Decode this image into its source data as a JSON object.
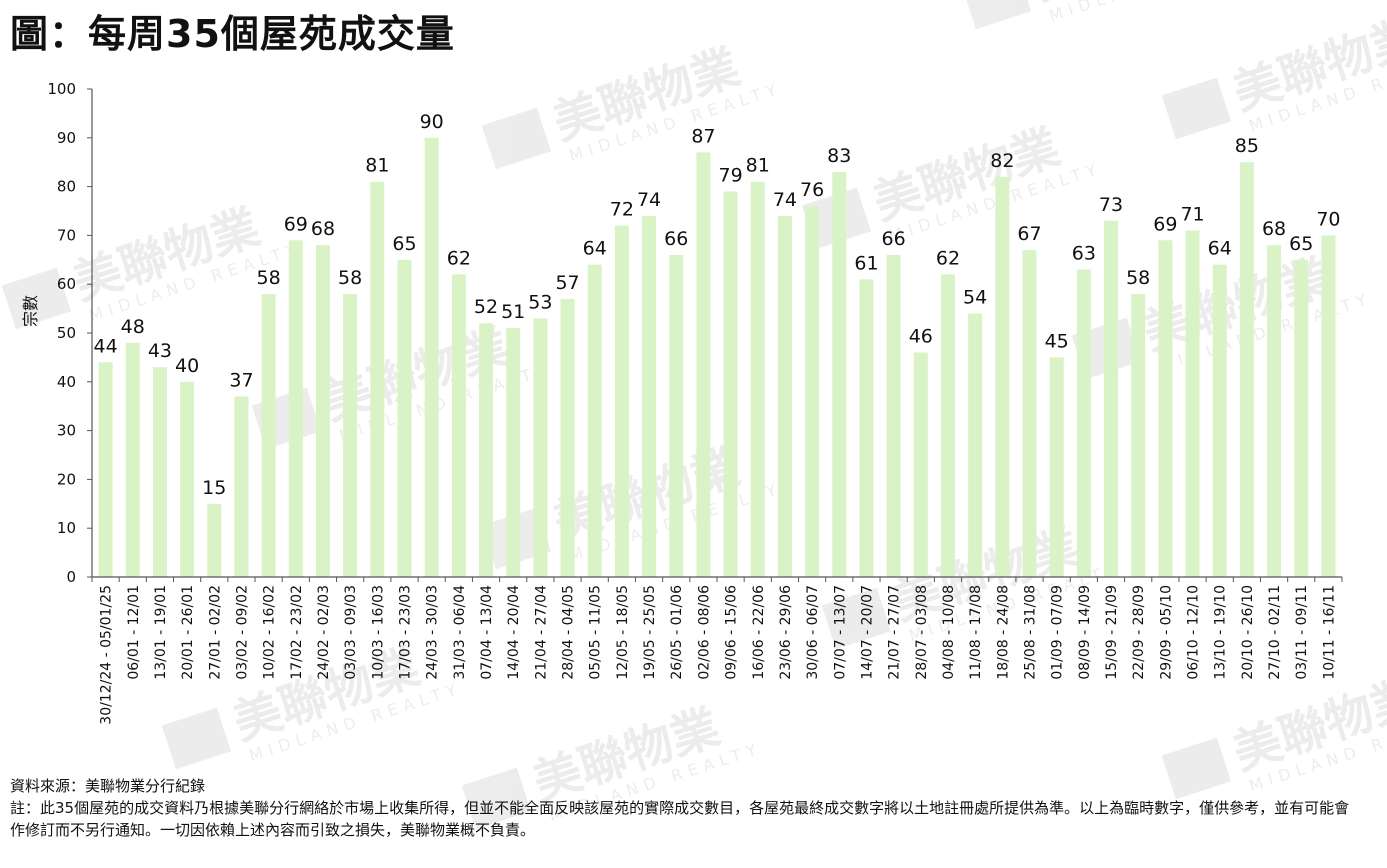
{
  "title": "圖：每周35個屋苑成交量",
  "source": "資料來源：美聯物業分行紀錄",
  "note": "註：此35個屋苑的成交資料乃根據美聯分行網絡於市場上收集所得，但並不能全面反映該屋苑的實際成交數目，各屋苑最終成交數字將以土地註冊處所提供為準。以上為臨時數字，僅供參考，並有可能會作修訂而不另行通知。一切因依賴上述內容而引致之損失，美聯物業概不負責。",
  "watermark": {
    "brand": "美聯物業",
    "brand_en": "MIDLAND REALTY"
  },
  "colors": {
    "bar": "#d9f3c7",
    "axis": "#555555",
    "text": "#111111"
  },
  "chart_data": {
    "type": "bar",
    "ylabel": "宗數",
    "ylim": [
      0,
      100
    ],
    "yticks": [
      0,
      10,
      20,
      30,
      40,
      50,
      60,
      70,
      80,
      90,
      100
    ],
    "grid": false,
    "legend": "none",
    "categories": [
      "30/12/24 - 05/01/25",
      "06/01 - 12/01",
      "13/01 - 19/01",
      "20/01 - 26/01",
      "27/01 - 02/02",
      "03/02 - 09/02",
      "10/02 - 16/02",
      "17/02 - 23/02",
      "24/02 - 02/03",
      "03/03 - 09/03",
      "10/03 - 16/03",
      "17/03 - 23/03",
      "24/03 - 30/03",
      "31/03 - 06/04",
      "07/04 - 13/04",
      "14/04 - 20/04",
      "21/04 - 27/04",
      "28/04 - 04/05",
      "05/05 - 11/05",
      "12/05 - 18/05",
      "19/05 - 25/05",
      "26/05 - 01/06",
      "02/06 - 08/06",
      "09/06 - 15/06",
      "16/06 - 22/06",
      "23/06 - 29/06",
      "30/06 - 06/07",
      "07/07 - 13/07",
      "14/07 - 20/07",
      "21/07 - 27/07",
      "28/07 - 03/08",
      "04/08 - 10/08",
      "11/08 - 17/08",
      "18/08 - 24/08",
      "25/08 - 31/08",
      "01/09 - 07/09",
      "08/09 - 14/09",
      "15/09 - 21/09",
      "22/09 - 28/09",
      "29/09 - 05/10",
      "06/10 - 12/10",
      "13/10 - 19/10",
      "20/10 - 26/10",
      "27/10 - 02/11",
      "03/11 - 09/11",
      "10/11 - 16/11"
    ],
    "values": [
      44,
      48,
      43,
      40,
      15,
      37,
      58,
      69,
      68,
      58,
      81,
      65,
      90,
      62,
      52,
      51,
      53,
      57,
      64,
      72,
      74,
      66,
      87,
      79,
      81,
      74,
      76,
      83,
      61,
      66,
      46,
      62,
      54,
      82,
      67,
      45,
      63,
      73,
      58,
      69,
      71,
      64,
      85,
      68,
      65,
      70
    ]
  }
}
